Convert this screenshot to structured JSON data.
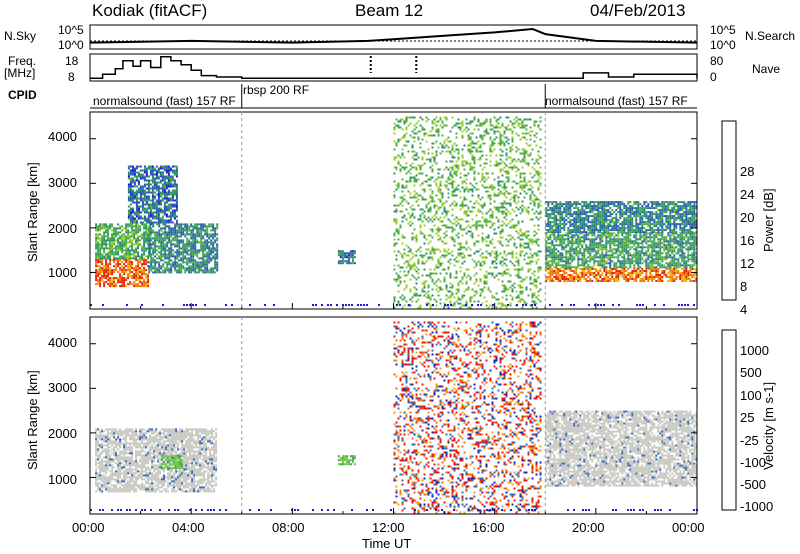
{
  "header": {
    "title_left": "Kodiak (fitACF)",
    "title_center": "Beam 12",
    "title_right": "04/Feb/2013"
  },
  "top_panel": {
    "left_label": "N.Sky",
    "right_label": "N.Search",
    "tick_top": "10^5",
    "tick_bottom": "10^0"
  },
  "freq_panel": {
    "left_label_1": "Freq.",
    "left_label_2": "[MHz]",
    "left_ticks": [
      "18",
      "8"
    ],
    "right_label": "Nave",
    "right_ticks": [
      "80",
      "0"
    ]
  },
  "cpid": {
    "label": "CPID",
    "segments": [
      {
        "text": "normalsound (fast) 157 RF",
        "start_h": 0.0,
        "end_h": 6.0
      },
      {
        "text": "rbsp 200 RF",
        "start_h": 6.0,
        "end_h": 18.0
      },
      {
        "text": "normalsound (fast) 157 RF",
        "start_h": 18.0,
        "end_h": 24.0
      }
    ]
  },
  "x_axis": {
    "label": "Time UT",
    "ticks": [
      "00:00",
      "04:00",
      "08:00",
      "12:00",
      "16:00",
      "20:00",
      "00:00"
    ]
  },
  "power_panel": {
    "ylabel": "Slant Range [km]",
    "yticks": [
      "4000",
      "3000",
      "2000",
      "1000"
    ],
    "colorbar_label": "Power [dB]",
    "colorbar_ticks": [
      "28",
      "24",
      "20",
      "16",
      "12",
      "8",
      "4"
    ],
    "colors": [
      "#1a1ae0",
      "#2a58b8",
      "#2f8c70",
      "#4aae4a",
      "#9ccc28",
      "#e8b818",
      "#f07810",
      "#e82010"
    ]
  },
  "velocity_panel": {
    "ylabel": "Slant Range [km]",
    "yticks": [
      "4000",
      "3000",
      "2000",
      "1000"
    ],
    "colorbar_label": "Velocity [m s-1]",
    "colorbar_ticks": [
      "1000",
      "500",
      "100",
      "25",
      "-25",
      "-100",
      "-500",
      "-1000"
    ],
    "colors": [
      "#1a2ab0",
      "#3a6ab8",
      "#4a9a6a",
      "#6ccc3a",
      "#c8c8c0",
      "#f0a020",
      "#f06810",
      "#e81810"
    ]
  },
  "chart_data": [
    {
      "type": "line",
      "title": "Kodiak (fitACF) Beam 12 04/Feb/2013",
      "xlabel": "Time UT",
      "xlim": [
        0,
        24
      ],
      "series": [
        {
          "name": "Freq.",
          "unit": "MHz",
          "x": [
            0.0,
            0.5,
            1.0,
            1.3,
            1.7,
            2.0,
            2.4,
            2.8,
            3.2,
            3.6,
            4.0,
            4.4,
            5.0,
            6.0,
            12.0,
            18.0,
            19.5,
            20.5,
            21.5,
            24.0
          ],
          "values": [
            9.0,
            10.5,
            12.5,
            15.5,
            13.5,
            15.5,
            13.0,
            17.0,
            15.5,
            14.0,
            12.0,
            10.0,
            9.5,
            9.0,
            9.0,
            9.0,
            11.0,
            9.5,
            10.5,
            9.0
          ]
        },
        {
          "name": "N.Sky",
          "x": [
            0,
            4,
            8,
            11,
            12,
            14,
            16,
            17.5,
            18,
            20,
            24
          ],
          "values": [
            1.0,
            1.5,
            1.0,
            1.5,
            2.0,
            3.0,
            4.0,
            5.0,
            3.5,
            1.5,
            1.0
          ]
        }
      ]
    },
    {
      "type": "heatmap",
      "title": "Power [dB]",
      "xlabel": "Time UT",
      "ylabel": "Slant Range [km]",
      "xlim": [
        0,
        24
      ],
      "ylim": [
        180,
        4600
      ],
      "zlim": [
        0,
        32
      ],
      "regions": [
        {
          "t_start": 0.2,
          "t_end": 2.3,
          "r_low": 700,
          "r_high": 1300,
          "power_db": 27
        },
        {
          "t_start": 0.2,
          "t_end": 2.4,
          "r_low": 1300,
          "r_high": 2100,
          "power_db": 13
        },
        {
          "t_start": 2.3,
          "t_end": 5.0,
          "r_low": 1000,
          "r_high": 2100,
          "power_db": 10
        },
        {
          "t_start": 1.5,
          "t_end": 3.4,
          "r_low": 2100,
          "r_high": 3400,
          "power_db": 8
        },
        {
          "t_start": 9.8,
          "t_end": 10.5,
          "r_low": 1200,
          "r_high": 1500,
          "power_db": 8
        },
        {
          "t_start": 12.0,
          "t_end": 17.8,
          "r_low": 200,
          "r_high": 4500,
          "power_db": 15
        },
        {
          "t_start": 18.0,
          "t_end": 24.0,
          "r_low": 800,
          "r_high": 1100,
          "power_db": 26
        },
        {
          "t_start": 18.0,
          "t_end": 24.0,
          "r_low": 1100,
          "r_high": 1900,
          "power_db": 12
        },
        {
          "t_start": 18.0,
          "t_end": 24.0,
          "r_low": 1900,
          "r_high": 2600,
          "power_db": 9
        }
      ]
    },
    {
      "type": "heatmap",
      "title": "Velocity [m s-1]",
      "xlabel": "Time UT",
      "ylabel": "Slant Range [km]",
      "xlim": [
        0,
        24
      ],
      "ylim": [
        180,
        4600
      ],
      "regions": [
        {
          "t_start": 0.2,
          "t_end": 5.0,
          "r_low": 700,
          "r_high": 2100,
          "velocity": 0
        },
        {
          "t_start": 2.8,
          "t_end": 3.6,
          "r_low": 1200,
          "r_high": 1500,
          "velocity": 60
        },
        {
          "t_start": 9.8,
          "t_end": 10.5,
          "r_low": 1300,
          "r_high": 1500,
          "velocity": 80
        },
        {
          "t_start": 12.0,
          "t_end": 17.8,
          "r_low": 200,
          "r_high": 4500,
          "velocity": -800
        },
        {
          "t_start": 18.0,
          "t_end": 24.0,
          "r_low": 800,
          "r_high": 2500,
          "velocity": 0
        }
      ]
    }
  ]
}
